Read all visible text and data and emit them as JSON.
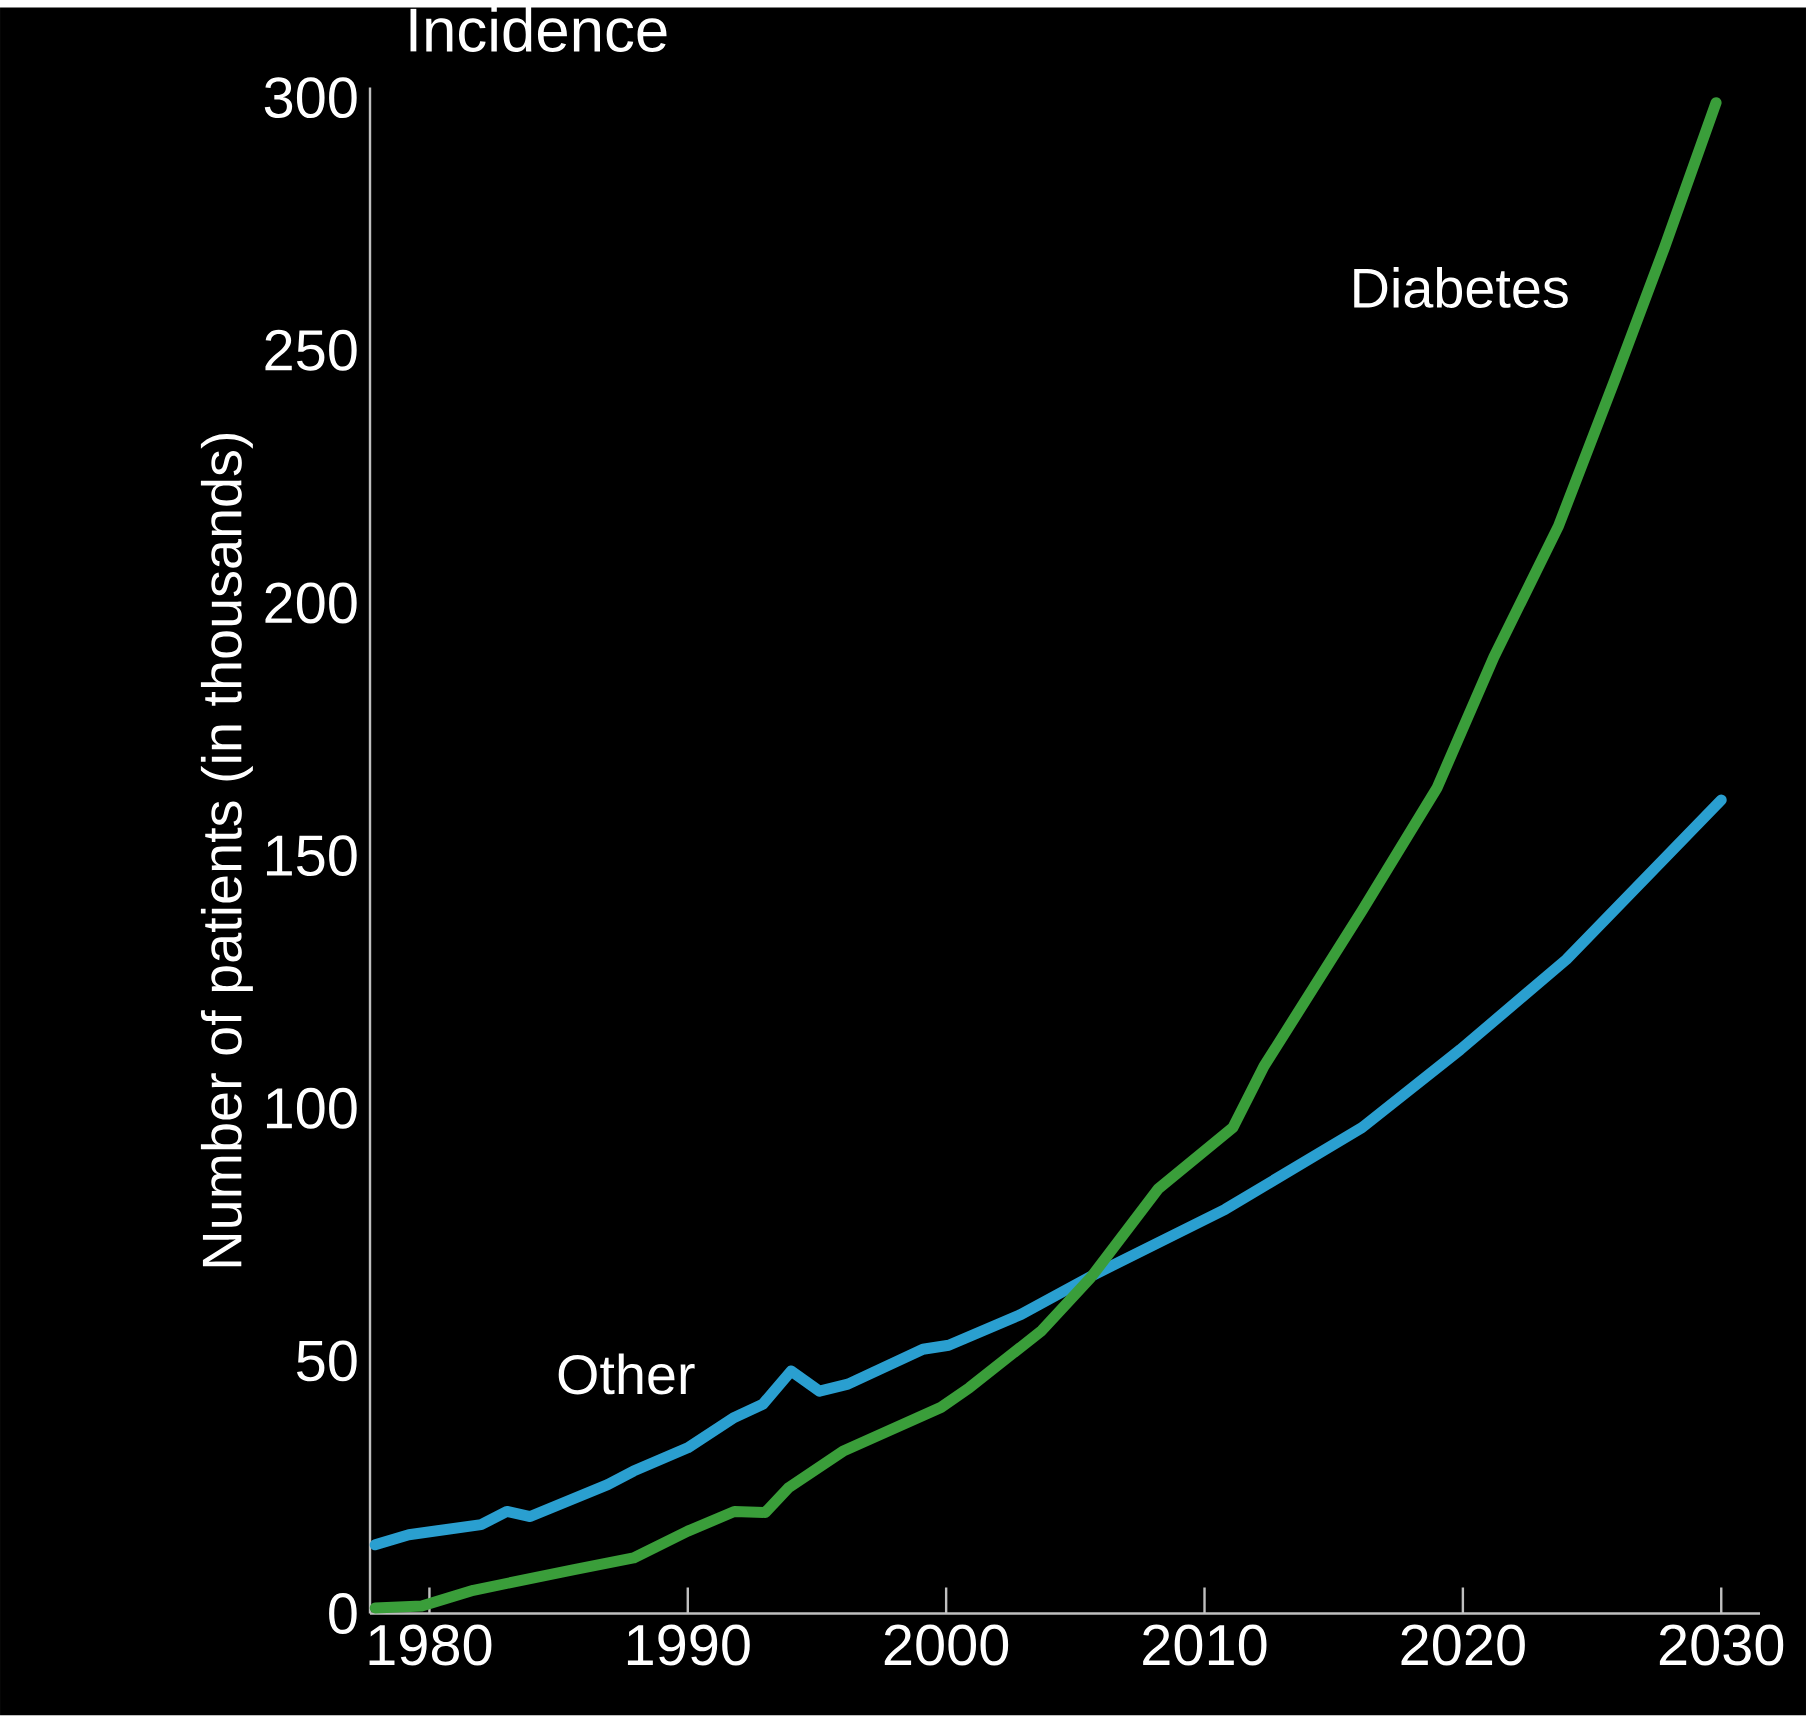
{
  "chart_data": {
    "type": "line",
    "title": "Incidence",
    "ylabel": "Number of patients (in thousands)",
    "xlim": [
      1977.7,
      2031.5
    ],
    "ylim": [
      0,
      302
    ],
    "xticks": [
      1980,
      1990,
      2000,
      2010,
      2020,
      2030
    ],
    "yticks": [
      0,
      50,
      100,
      150,
      200,
      250,
      300
    ],
    "grid": false,
    "series": [
      {
        "name": "Other",
        "color": "#2a9fd0",
        "x": [
          1977.9,
          1979.2,
          1982.0,
          1983.0,
          1983.9,
          1986.9,
          1987.9,
          1990.0,
          1991.8,
          1992.9,
          1994.0,
          1995.1,
          1996.2,
          1999.1,
          2000.1,
          2002.9,
          2005.7,
          2010.8,
          2016.1,
          2019.9,
          2024.0,
          2030.0
        ],
        "values": [
          13.6,
          15.6,
          17.6,
          20.2,
          19.2,
          25.5,
          28.2,
          32.8,
          38.8,
          41.4,
          48.0,
          44.0,
          45.4,
          52.3,
          53.1,
          59.2,
          67.0,
          80.0,
          96.2,
          111.6,
          129.4,
          161
        ]
      },
      {
        "name": "Diabetes",
        "color": "#3a9e3a",
        "x": [
          1977.9,
          1979.7,
          1981.7,
          1985.6,
          1987.9,
          1990.0,
          1991.8,
          1993.0,
          1993.9,
          1996.0,
          1999.8,
          2000.9,
          2003.7,
          2005.6,
          2008.2,
          2011.1,
          2012.3,
          2016.1,
          2019.0,
          2021.2,
          2023.7,
          2025.9,
          2027.8,
          2029.8
        ],
        "values": [
          1.1,
          1.5,
          4.6,
          8.7,
          11.0,
          16.3,
          20.2,
          20.0,
          24.9,
          32.1,
          40.8,
          44.7,
          56.0,
          66.5,
          84.0,
          96.2,
          108.3,
          139.1,
          163.4,
          189.3,
          215.2,
          244.4,
          270.3,
          299
        ]
      }
    ]
  }
}
